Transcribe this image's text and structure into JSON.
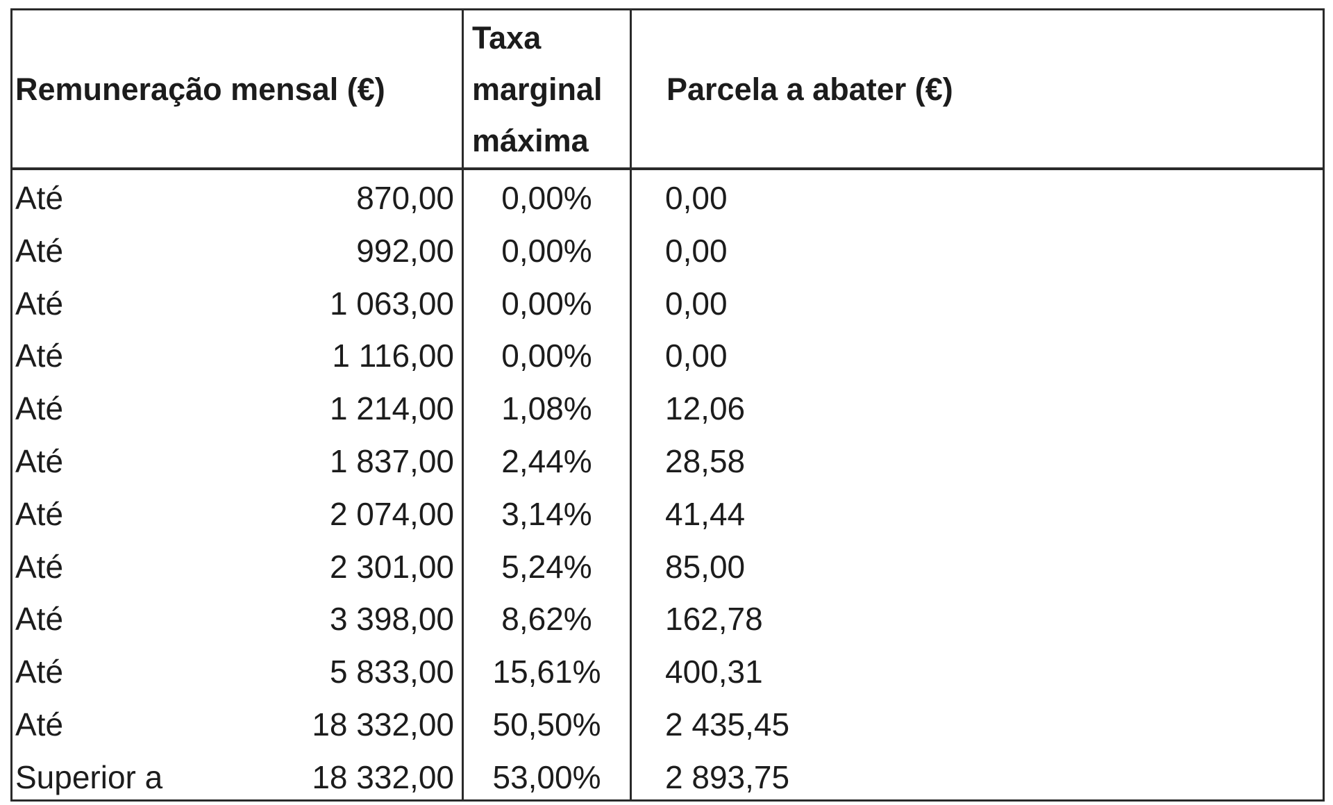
{
  "header": [
    "Remuneração mensal (€)",
    "Taxa marginal máxima",
    "Parcela a abater (€)"
  ],
  "rows": [
    [
      "Até",
      "870,00",
      "0,00%",
      "0,00"
    ],
    [
      "Até",
      "992,00",
      "0,00%",
      "0,00"
    ],
    [
      "Até",
      "1 063,00",
      "0,00%",
      "0,00"
    ],
    [
      "Até",
      "1 116,00",
      "0,00%",
      "0,00"
    ],
    [
      "Até",
      "1 214,00",
      "1,08%",
      "12,06"
    ],
    [
      "Até",
      "1 837,00",
      "2,44%",
      "28,58"
    ],
    [
      "Até",
      "2 074,00",
      "3,14%",
      "41,44"
    ],
    [
      "Até",
      "2 301,00",
      "5,24%",
      "85,00"
    ],
    [
      "Até",
      "3 398,00",
      "8,62%",
      "162,78"
    ],
    [
      "Até",
      "5 833,00",
      "15,61%",
      "400,31"
    ],
    [
      "Até",
      "18 332,00",
      "50,50%",
      "2 435,45"
    ],
    [
      "Superior a",
      "18 332,00",
      "53,00%",
      "2 893,75"
    ]
  ]
}
